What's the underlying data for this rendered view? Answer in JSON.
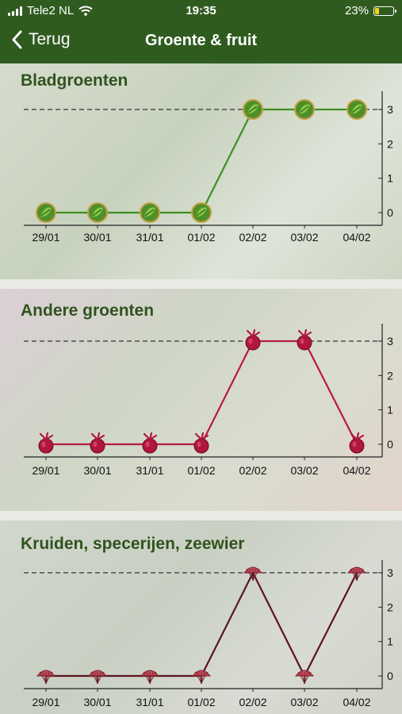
{
  "status_bar": {
    "carrier": "Tele2 NL",
    "time": "19:35",
    "battery": "23%",
    "battery_level": 0.23
  },
  "nav": {
    "back_label": "Terug",
    "title": "Groente & fruit"
  },
  "charts": [
    {
      "heading": "Bladgroenten",
      "line_color": "#3f8f1e",
      "marker": "leaf",
      "chart_data": {
        "type": "line",
        "categories": [
          "29/01",
          "30/01",
          "31/01",
          "01/02",
          "02/02",
          "03/02",
          "04/02"
        ],
        "values": [
          0,
          0,
          0,
          0,
          3,
          3,
          3
        ],
        "yticks": [
          "0",
          "1",
          "2",
          "3"
        ],
        "ylim": [
          0,
          3
        ],
        "reference_line": 3
      }
    },
    {
      "heading": "Andere groenten",
      "line_color": "#b51b3e",
      "marker": "beet",
      "chart_data": {
        "type": "line",
        "categories": [
          "29/01",
          "30/01",
          "31/01",
          "01/02",
          "02/02",
          "03/02",
          "04/02"
        ],
        "values": [
          0,
          0,
          0,
          0,
          3,
          3,
          0
        ],
        "yticks": [
          "0",
          "1",
          "2",
          "3"
        ],
        "ylim": [
          0,
          3
        ],
        "reference_line": 3
      }
    },
    {
      "heading": "Kruiden, specerijen, zeewier",
      "line_color": "#5a1420",
      "marker": "herb",
      "chart_data": {
        "type": "line",
        "categories": [
          "29/01",
          "30/01",
          "31/01",
          "01/02",
          "02/02",
          "03/02",
          "04/02"
        ],
        "values": [
          0,
          0,
          0,
          0,
          3,
          0,
          3
        ],
        "yticks": [
          "0",
          "1",
          "2",
          "3"
        ],
        "ylim": [
          0,
          3
        ],
        "reference_line": 3
      }
    }
  ]
}
